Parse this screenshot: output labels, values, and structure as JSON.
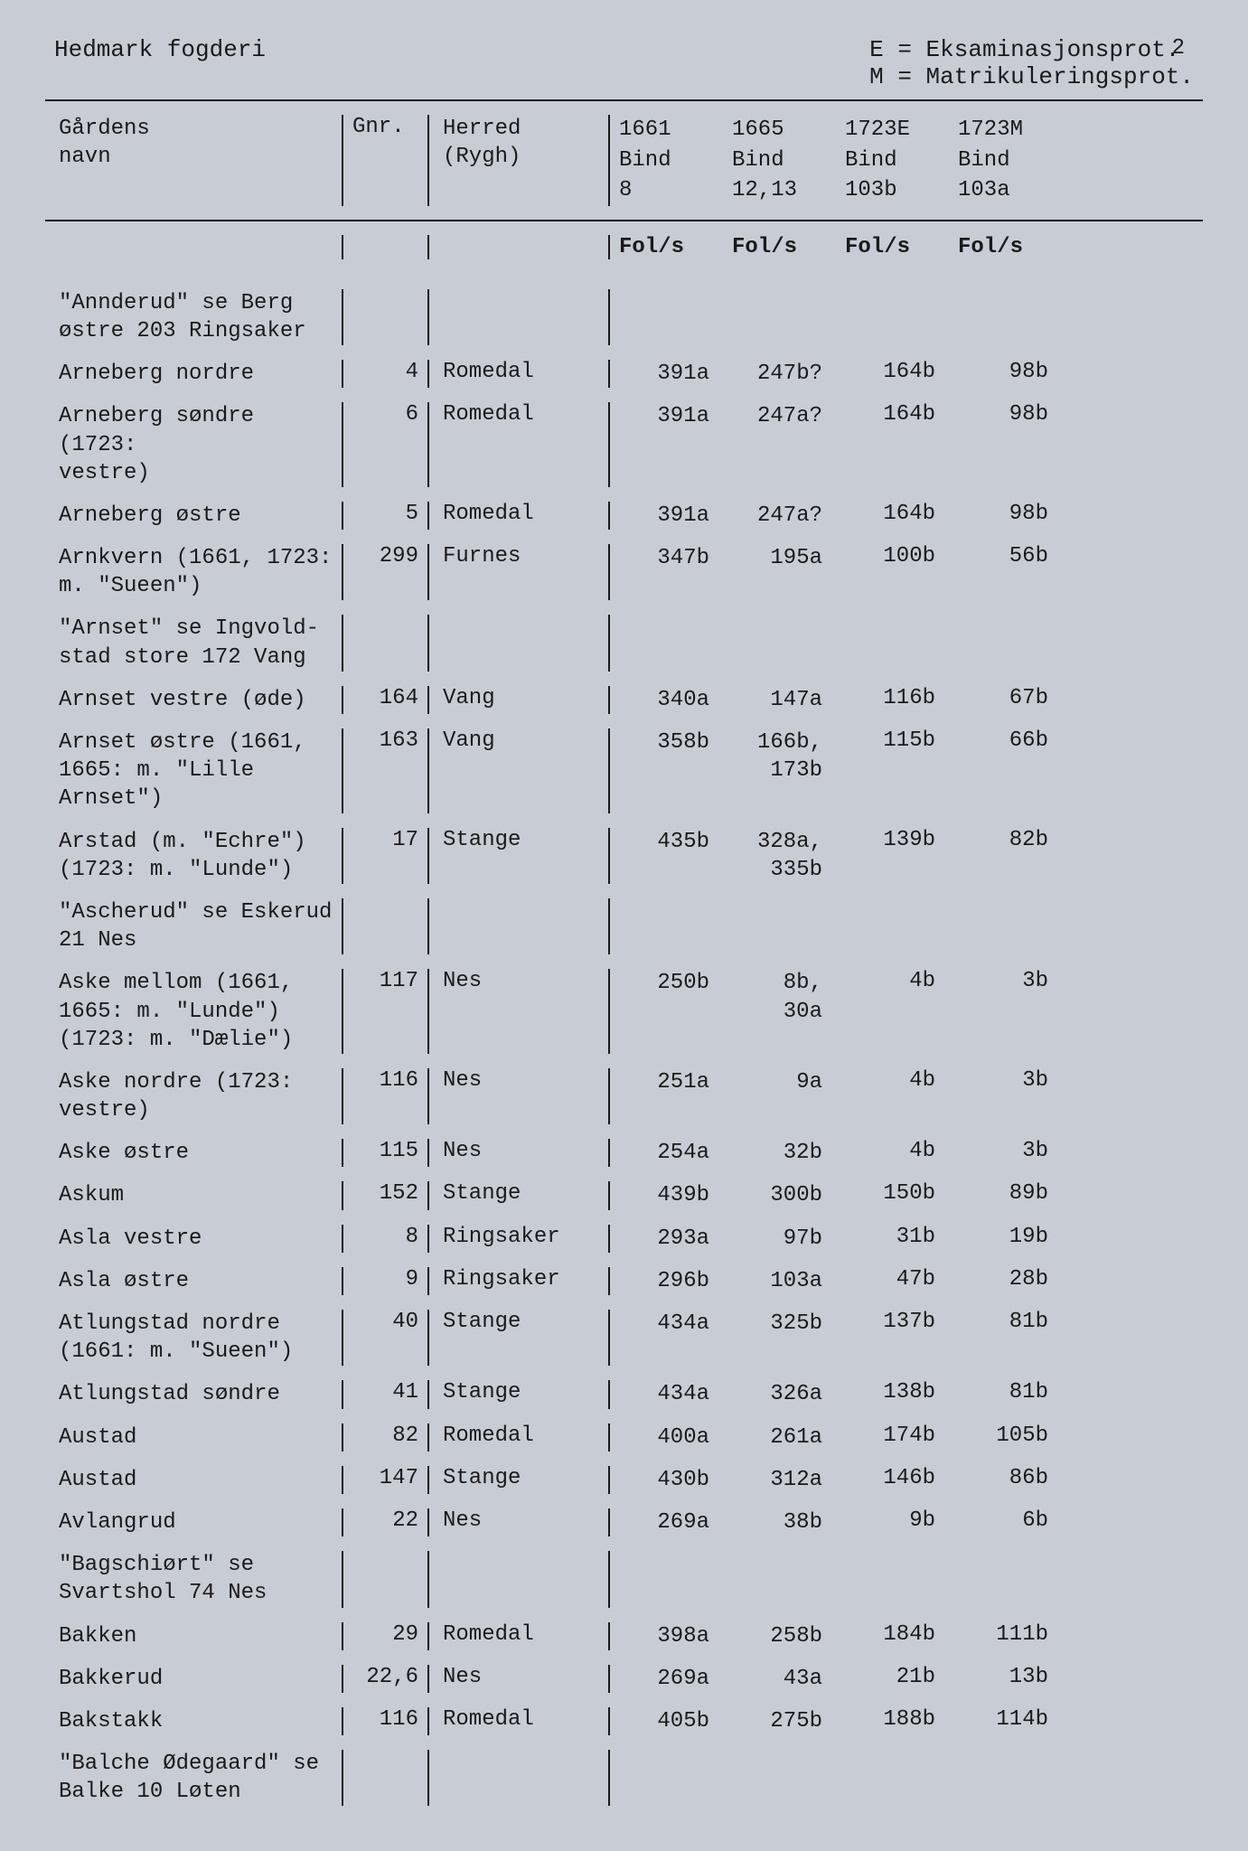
{
  "page_number": "2",
  "header": {
    "left": "Hedmark fogderi",
    "right": "E = Eksaminasjonsprot.\nM = Matrikuleringsprot."
  },
  "columns": {
    "name": "Gårdens\nnavn",
    "gnr": "Gnr.",
    "herred": "Herred\n(Rygh)",
    "year1": "1661\nBind\n8",
    "year2": "1665\nBind\n12,13",
    "year3": "1723E\nBind\n103b",
    "year4": "1723M\nBind\n103a"
  },
  "subheader": {
    "fols": "Fol/s"
  },
  "rows": [
    {
      "name": "\"Annderud\" se Berg\nøstre 203 Ringsaker",
      "gnr": "",
      "herred": "",
      "y1": "",
      "y2": "",
      "y3": "",
      "y4": ""
    },
    {
      "name": "Arneberg nordre",
      "gnr": "4",
      "herred": "Romedal",
      "y1": "391a",
      "y2": "247b?",
      "y3": "164b",
      "y4": "98b"
    },
    {
      "name": "Arneberg søndre (1723:\nvestre)",
      "gnr": "6",
      "herred": "Romedal",
      "y1": "391a",
      "y2": "247a?",
      "y3": "164b",
      "y4": "98b"
    },
    {
      "name": "Arneberg østre",
      "gnr": "5",
      "herred": "Romedal",
      "y1": "391a",
      "y2": "247a?",
      "y3": "164b",
      "y4": "98b"
    },
    {
      "name": "Arnkvern (1661, 1723:\nm. \"Sueen\")",
      "gnr": "299",
      "herred": "Furnes",
      "y1": "347b",
      "y2": "195a",
      "y3": "100b",
      "y4": "56b"
    },
    {
      "name": "\"Arnset\" se Ingvold-\nstad store 172 Vang",
      "gnr": "",
      "herred": "",
      "y1": "",
      "y2": "",
      "y3": "",
      "y4": ""
    },
    {
      "name": "Arnset vestre (øde)",
      "gnr": "164",
      "herred": "Vang",
      "y1": "340a",
      "y2": "147a",
      "y3": "116b",
      "y4": "67b"
    },
    {
      "name": "Arnset østre (1661,\n1665: m. \"Lille\nArnset\")",
      "gnr": "163",
      "herred": "Vang",
      "y1": "358b",
      "y2": "166b,\n173b",
      "y3": "115b",
      "y4": "66b"
    },
    {
      "name": "Arstad (m. \"Echre\")\n(1723: m. \"Lunde\")",
      "gnr": "17",
      "herred": "Stange",
      "y1": "435b",
      "y2": "328a,\n335b",
      "y3": "139b",
      "y4": "82b"
    },
    {
      "name": "\"Ascherud\" se Eskerud\n21 Nes",
      "gnr": "",
      "herred": "",
      "y1": "",
      "y2": "",
      "y3": "",
      "y4": ""
    },
    {
      "name": "Aske mellom (1661,\n1665: m. \"Lunde\")\n(1723: m. \"Dælie\")",
      "gnr": "117",
      "herred": "Nes",
      "y1": "250b",
      "y2": "8b,\n30a",
      "y3": "4b",
      "y4": "3b"
    },
    {
      "name": "Aske nordre (1723:\nvestre)",
      "gnr": "116",
      "herred": "Nes",
      "y1": "251a",
      "y2": "9a",
      "y3": "4b",
      "y4": "3b"
    },
    {
      "name": "Aske østre",
      "gnr": "115",
      "herred": "Nes",
      "y1": "254a",
      "y2": "32b",
      "y3": "4b",
      "y4": "3b"
    },
    {
      "name": "Askum",
      "gnr": "152",
      "herred": "Stange",
      "y1": "439b",
      "y2": "300b",
      "y3": "150b",
      "y4": "89b"
    },
    {
      "name": "Asla vestre",
      "gnr": "8",
      "herred": "Ringsaker",
      "y1": "293a",
      "y2": "97b",
      "y3": "31b",
      "y4": "19b"
    },
    {
      "name": "Asla østre",
      "gnr": "9",
      "herred": "Ringsaker",
      "y1": "296b",
      "y2": "103a",
      "y3": "47b",
      "y4": "28b"
    },
    {
      "name": "Atlungstad nordre\n(1661: m. \"Sueen\")",
      "gnr": "40",
      "herred": "Stange",
      "y1": "434a",
      "y2": "325b",
      "y3": "137b",
      "y4": "81b"
    },
    {
      "name": "Atlungstad søndre",
      "gnr": "41",
      "herred": "Stange",
      "y1": "434a",
      "y2": "326a",
      "y3": "138b",
      "y4": "81b"
    },
    {
      "name": "Austad",
      "gnr": "82",
      "herred": "Romedal",
      "y1": "400a",
      "y2": "261a",
      "y3": "174b",
      "y4": "105b"
    },
    {
      "name": "Austad",
      "gnr": "147",
      "herred": "Stange",
      "y1": "430b",
      "y2": "312a",
      "y3": "146b",
      "y4": "86b"
    },
    {
      "name": "Avlangrud",
      "gnr": "22",
      "herred": "Nes",
      "y1": "269a",
      "y2": "38b",
      "y3": "9b",
      "y4": "6b"
    },
    {
      "name": "\"Bagschiørt\" se\nSvartshol 74 Nes",
      "gnr": "",
      "herred": "",
      "y1": "",
      "y2": "",
      "y3": "",
      "y4": ""
    },
    {
      "name": "Bakken",
      "gnr": "29",
      "herred": "Romedal",
      "y1": "398a",
      "y2": "258b",
      "y3": "184b",
      "y4": "111b"
    },
    {
      "name": "Bakkerud",
      "gnr": "22,6",
      "herred": "Nes",
      "y1": "269a",
      "y2": "43a",
      "y3": "21b",
      "y4": "13b"
    },
    {
      "name": "Bakstakk",
      "gnr": "116",
      "herred": "Romedal",
      "y1": "405b",
      "y2": "275b",
      "y3": "188b",
      "y4": "114b"
    },
    {
      "name": "\"Balche Ødegaard\" se\nBalke 10 Løten",
      "gnr": "",
      "herred": "",
      "y1": "",
      "y2": "",
      "y3": "",
      "y4": ""
    }
  ]
}
